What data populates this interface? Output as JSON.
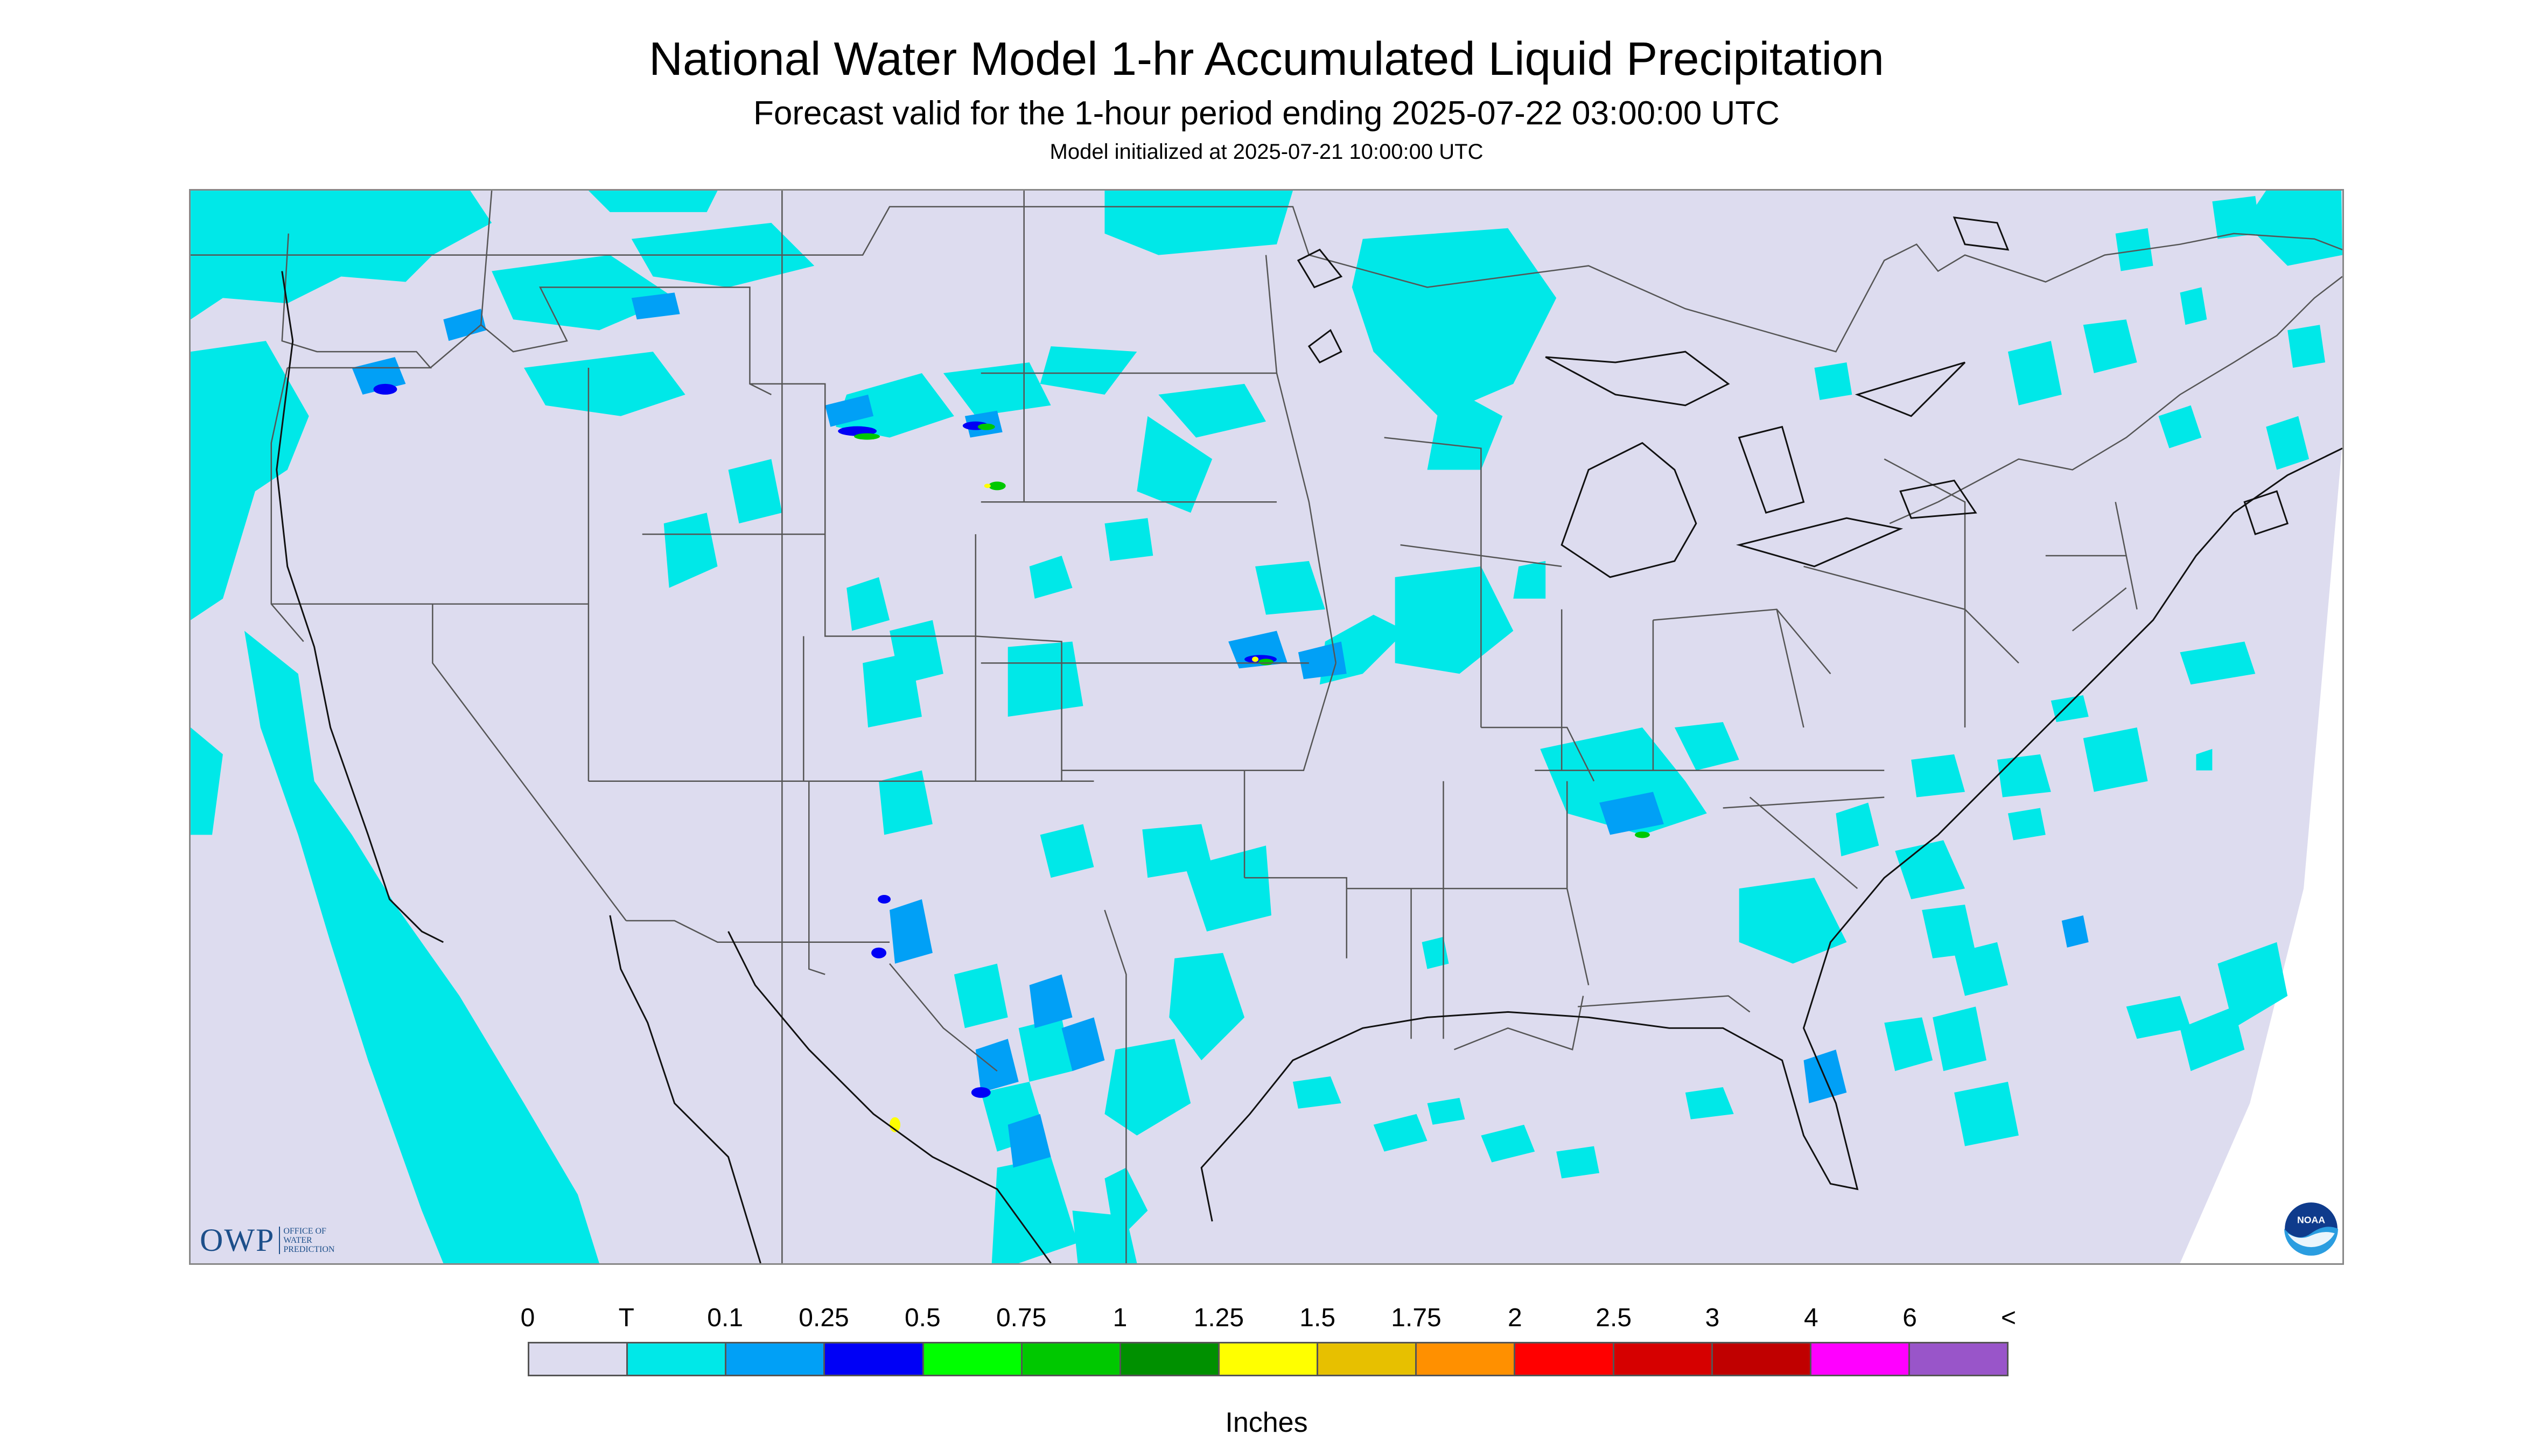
{
  "header": {
    "title": "National Water Model 1-hr Accumulated Liquid Precipitation",
    "subtitle": "Forecast valid for the 1-hour period ending 2025-07-22 03:00:00 UTC",
    "init": "Model initialized at 2025-07-21 10:00:00 UTC"
  },
  "logos": {
    "owp_mark": "OWP",
    "owp_text": [
      "OFFICE OF",
      "WATER",
      "PREDICTION"
    ],
    "noaa": "NOAA"
  },
  "legend": {
    "labels": [
      "0",
      "T",
      "0.1",
      "0.25",
      "0.5",
      "0.75",
      "1",
      "1.25",
      "1.5",
      "1.75",
      "2",
      "2.5",
      "3",
      "4",
      "6",
      "<"
    ],
    "colors": [
      "#dddcef",
      "#00e8e8",
      "#01a0f6",
      "#0000f6",
      "#00ff00",
      "#00c800",
      "#009000",
      "#ffff00",
      "#e7c000",
      "#ff9000",
      "#ff0000",
      "#d60000",
      "#c00000",
      "#ff00ff",
      "#9955c9"
    ],
    "units": "Inches"
  },
  "colors": {
    "background": "#dddcef",
    "trace": "#00e8e8",
    "light": "#01a0f6",
    "moderate": "#0000f6",
    "heavy": "#00c800",
    "extreme": "#ffff00"
  }
}
